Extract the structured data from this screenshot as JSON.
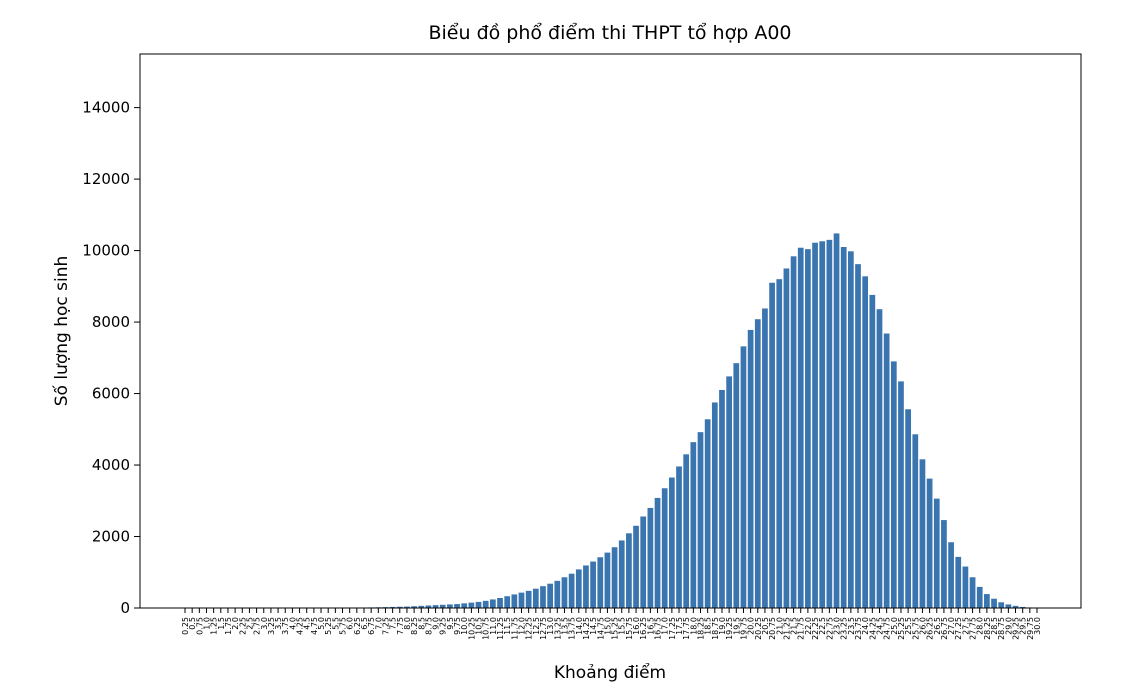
{
  "chart_data": {
    "type": "bar",
    "title": "Biểu đồ phổ điểm thi THPT tổ hợp A00",
    "xlabel": "Khoảng điểm",
    "ylabel": "Số lượng học sinh",
    "ylim": [
      0,
      15500
    ],
    "yticks": [
      0,
      2000,
      4000,
      6000,
      8000,
      10000,
      12000,
      14000
    ],
    "grid": false,
    "bar_color": "#3b75af",
    "categories": [
      "0.25",
      "0.5",
      "0.75",
      "1.0",
      "1.25",
      "1.5",
      "1.75",
      "2.0",
      "2.25",
      "2.5",
      "2.75",
      "3.0",
      "3.25",
      "3.5",
      "3.75",
      "4.0",
      "4.25",
      "4.5",
      "4.75",
      "5.0",
      "5.25",
      "5.5",
      "5.75",
      "6.0",
      "6.25",
      "6.5",
      "6.75",
      "7.0",
      "7.25",
      "7.5",
      "7.75",
      "8.0",
      "8.25",
      "8.5",
      "8.75",
      "9.0",
      "9.25",
      "9.5",
      "9.75",
      "10.0",
      "10.25",
      "10.5",
      "10.75",
      "11.0",
      "11.25",
      "11.5",
      "11.75",
      "12.0",
      "12.25",
      "12.5",
      "12.75",
      "13.0",
      "13.25",
      "13.5",
      "13.75",
      "14.0",
      "14.25",
      "14.5",
      "14.75",
      "15.0",
      "15.25",
      "15.5",
      "15.75",
      "16.0",
      "16.25",
      "16.5",
      "16.75",
      "17.0",
      "17.25",
      "17.5",
      "17.75",
      "18.0",
      "18.25",
      "18.5",
      "18.75",
      "19.0",
      "19.25",
      "19.5",
      "19.75",
      "20.0",
      "20.25",
      "20.5",
      "20.75",
      "21.0",
      "21.25",
      "21.5",
      "21.75",
      "22.0",
      "22.25",
      "22.5",
      "22.75",
      "23.0",
      "23.25",
      "23.5",
      "23.75",
      "24.0",
      "24.25",
      "24.5",
      "24.75",
      "25.0",
      "25.25",
      "25.5",
      "25.75",
      "26.0",
      "26.25",
      "26.5",
      "26.75",
      "27.0",
      "27.25",
      "27.5",
      "27.75",
      "28.0",
      "28.25",
      "28.5",
      "28.75",
      "29.0",
      "29.25",
      "29.5",
      "29.75",
      "30.0"
    ],
    "values": [
      0,
      0,
      0,
      0,
      0,
      0,
      0,
      0,
      0,
      0,
      0,
      0,
      0,
      0,
      0,
      0,
      0,
      1,
      2,
      3,
      4,
      5,
      6,
      8,
      10,
      13,
      16,
      20,
      25,
      30,
      35,
      40,
      50,
      60,
      70,
      80,
      90,
      100,
      110,
      130,
      150,
      170,
      200,
      240,
      280,
      330,
      380,
      430,
      480,
      540,
      610,
      680,
      760,
      860,
      960,
      1080,
      1190,
      1300,
      1420,
      1550,
      1700,
      1890,
      2090,
      2300,
      2560,
      2800,
      3080,
      3350,
      3650,
      3960,
      4300,
      4640,
      4920,
      5280,
      5750,
      6100,
      6480,
      6850,
      7320,
      7780,
      8080,
      8380,
      9100,
      9200,
      9500,
      9840,
      10080,
      10040,
      10220,
      10260,
      10300,
      10480,
      10100,
      9980,
      9620,
      9280,
      8760,
      8360,
      7680,
      6900,
      6340,
      5560,
      4860,
      4160,
      3620,
      3060,
      2460,
      1840,
      1430,
      1160,
      860,
      590,
      390,
      260,
      160,
      100,
      60,
      30,
      15,
      8
    ]
  }
}
